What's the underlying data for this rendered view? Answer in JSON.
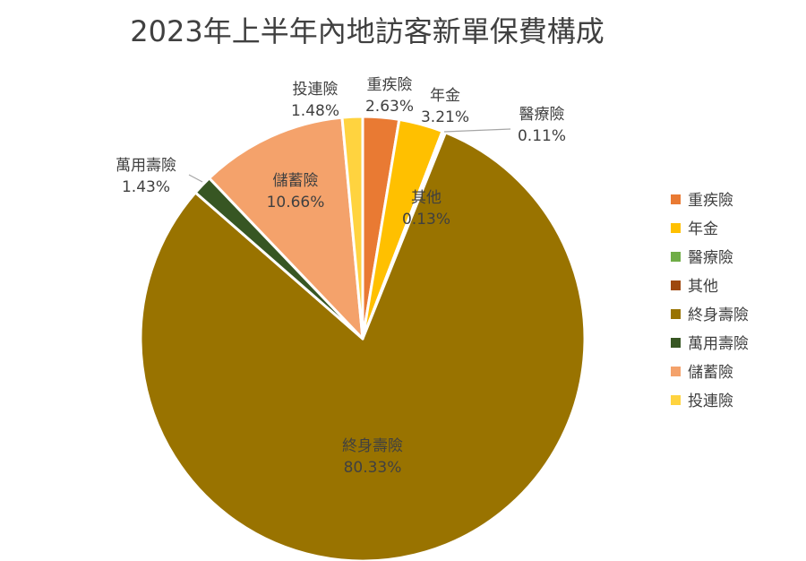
{
  "chart_data": {
    "type": "pie",
    "title": "2023年上半年內地訪客新單保費構成",
    "legend_position": "right",
    "slices": [
      {
        "name": "重疾險",
        "value": 2.63,
        "label": "2.63%",
        "color": "#E97A33"
      },
      {
        "name": "年金",
        "value": 3.21,
        "label": "3.21%",
        "color": "#FFC000"
      },
      {
        "name": "醫療險",
        "value": 0.11,
        "label": "0.11%",
        "color": "#70AD47"
      },
      {
        "name": "其他",
        "value": 0.13,
        "label": "0.13%",
        "color": "#9E480E"
      },
      {
        "name": "終身壽險",
        "value": 80.33,
        "label": "80.33%",
        "color": "#997300"
      },
      {
        "name": "萬用壽險",
        "value": 1.43,
        "label": "1.43%",
        "color": "#375623"
      },
      {
        "name": "儲蓄險",
        "value": 10.66,
        "label": "10.66%",
        "color": "#F4A26B"
      },
      {
        "name": "投連險",
        "value": 1.48,
        "label": "1.48%",
        "color": "#FFD33F"
      }
    ]
  }
}
